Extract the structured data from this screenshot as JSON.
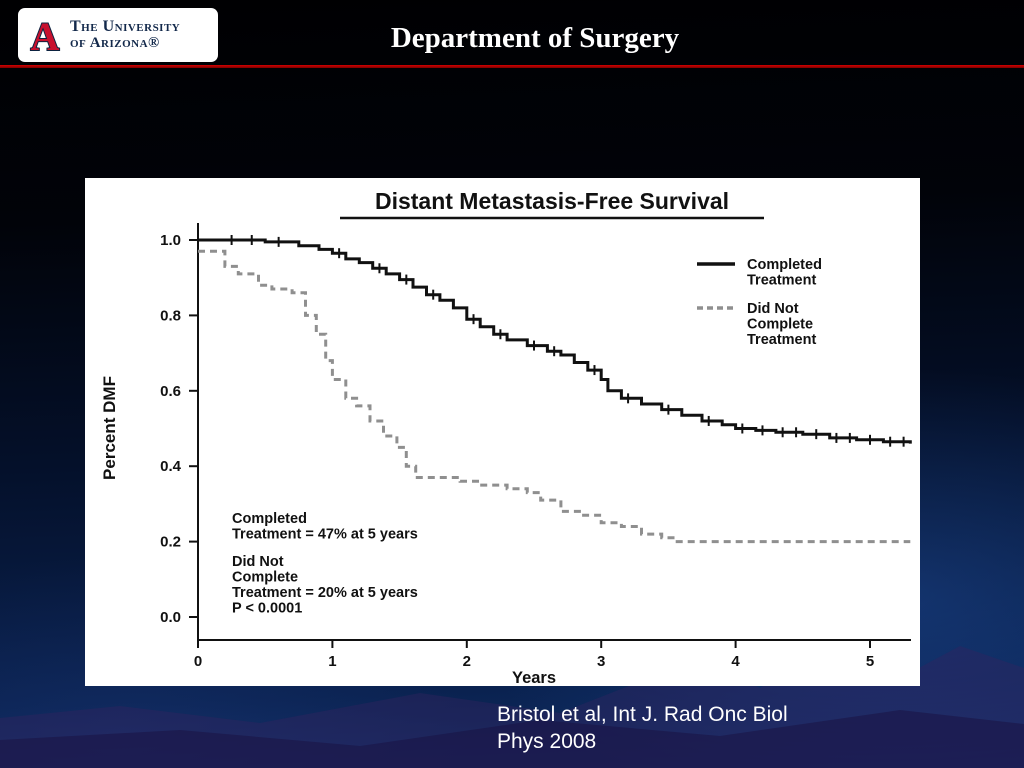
{
  "header": {
    "logo": {
      "a_letter": "A",
      "line1": "The University",
      "line2": "of Arizona®"
    },
    "title": "Department of Surgery"
  },
  "footer": {
    "citation_line1": "Bristol et al, Int J. Rad Onc Biol",
    "citation_line2": "Phys 2008"
  },
  "colors": {
    "accent_red": "#c00000",
    "slide_navy": "#0a2250",
    "solid_series": "#111111",
    "dashed_series": "#8f8f8f"
  },
  "chart_data": {
    "type": "line",
    "subtype": "kaplan-meier-step",
    "title": "Distant Metastasis-Free Survival",
    "xlabel": "Years",
    "ylabel": "Percent DMF",
    "xlim": [
      0,
      5.3
    ],
    "ylim": [
      0.0,
      1.0
    ],
    "x_ticks": [
      0,
      1,
      2,
      3,
      4,
      5
    ],
    "y_ticks": [
      0.0,
      0.2,
      0.4,
      0.6,
      0.8,
      1.0
    ],
    "grid": false,
    "legend_position": "upper right",
    "series": [
      {
        "name": "Completed Treatment",
        "style": "solid",
        "color": "#111111",
        "points": [
          [
            0,
            1.0
          ],
          [
            0.5,
            0.995
          ],
          [
            0.75,
            0.985
          ],
          [
            0.9,
            0.975
          ],
          [
            1.0,
            0.965
          ],
          [
            1.1,
            0.95
          ],
          [
            1.2,
            0.94
          ],
          [
            1.3,
            0.925
          ],
          [
            1.4,
            0.91
          ],
          [
            1.5,
            0.895
          ],
          [
            1.6,
            0.875
          ],
          [
            1.7,
            0.855
          ],
          [
            1.8,
            0.84
          ],
          [
            1.9,
            0.82
          ],
          [
            2.0,
            0.79
          ],
          [
            2.1,
            0.77
          ],
          [
            2.2,
            0.75
          ],
          [
            2.3,
            0.735
          ],
          [
            2.45,
            0.72
          ],
          [
            2.6,
            0.705
          ],
          [
            2.7,
            0.695
          ],
          [
            2.8,
            0.675
          ],
          [
            2.9,
            0.655
          ],
          [
            3.0,
            0.63
          ],
          [
            3.05,
            0.6
          ],
          [
            3.15,
            0.58
          ],
          [
            3.3,
            0.565
          ],
          [
            3.45,
            0.55
          ],
          [
            3.6,
            0.535
          ],
          [
            3.75,
            0.52
          ],
          [
            3.9,
            0.51
          ],
          [
            4.0,
            0.5
          ],
          [
            4.15,
            0.495
          ],
          [
            4.3,
            0.49
          ],
          [
            4.5,
            0.485
          ],
          [
            4.7,
            0.475
          ],
          [
            4.9,
            0.47
          ],
          [
            5.1,
            0.465
          ],
          [
            5.3,
            0.46
          ]
        ]
      },
      {
        "name": "Did Not Complete Treatment",
        "style": "dashed",
        "color": "#8f8f8f",
        "points": [
          [
            0,
            0.97
          ],
          [
            0.2,
            0.93
          ],
          [
            0.3,
            0.91
          ],
          [
            0.45,
            0.88
          ],
          [
            0.55,
            0.87
          ],
          [
            0.7,
            0.86
          ],
          [
            0.8,
            0.8
          ],
          [
            0.88,
            0.75
          ],
          [
            0.95,
            0.68
          ],
          [
            1.0,
            0.63
          ],
          [
            1.1,
            0.58
          ],
          [
            1.18,
            0.56
          ],
          [
            1.28,
            0.52
          ],
          [
            1.38,
            0.48
          ],
          [
            1.48,
            0.45
          ],
          [
            1.55,
            0.4
          ],
          [
            1.62,
            0.37
          ],
          [
            1.95,
            0.36
          ],
          [
            2.1,
            0.35
          ],
          [
            2.3,
            0.34
          ],
          [
            2.45,
            0.33
          ],
          [
            2.55,
            0.31
          ],
          [
            2.7,
            0.28
          ],
          [
            2.85,
            0.27
          ],
          [
            3.0,
            0.25
          ],
          [
            3.15,
            0.24
          ],
          [
            3.3,
            0.22
          ],
          [
            3.45,
            0.21
          ],
          [
            3.55,
            0.2
          ],
          [
            5.3,
            0.2
          ]
        ]
      }
    ],
    "censor_marks_x": [
      0.25,
      0.4,
      0.6,
      1.05,
      1.35,
      1.55,
      1.75,
      2.05,
      2.25,
      2.5,
      2.65,
      2.95,
      3.2,
      3.5,
      3.8,
      4.05,
      4.2,
      4.35,
      4.45,
      4.6,
      4.75,
      4.85,
      5.0,
      5.15,
      5.25
    ],
    "legend": [
      {
        "swatch": "solid",
        "lines": [
          "Completed",
          "Treatment"
        ]
      },
      {
        "swatch": "dashed",
        "lines": [
          "Did Not",
          "Complete",
          "Treatment"
        ]
      }
    ],
    "annotations": [
      "Completed",
      "Treatment = 47%  at 5 years",
      "",
      "Did Not",
      "Complete",
      "Treatment = 20% at 5 years",
      "P < 0.0001"
    ]
  }
}
